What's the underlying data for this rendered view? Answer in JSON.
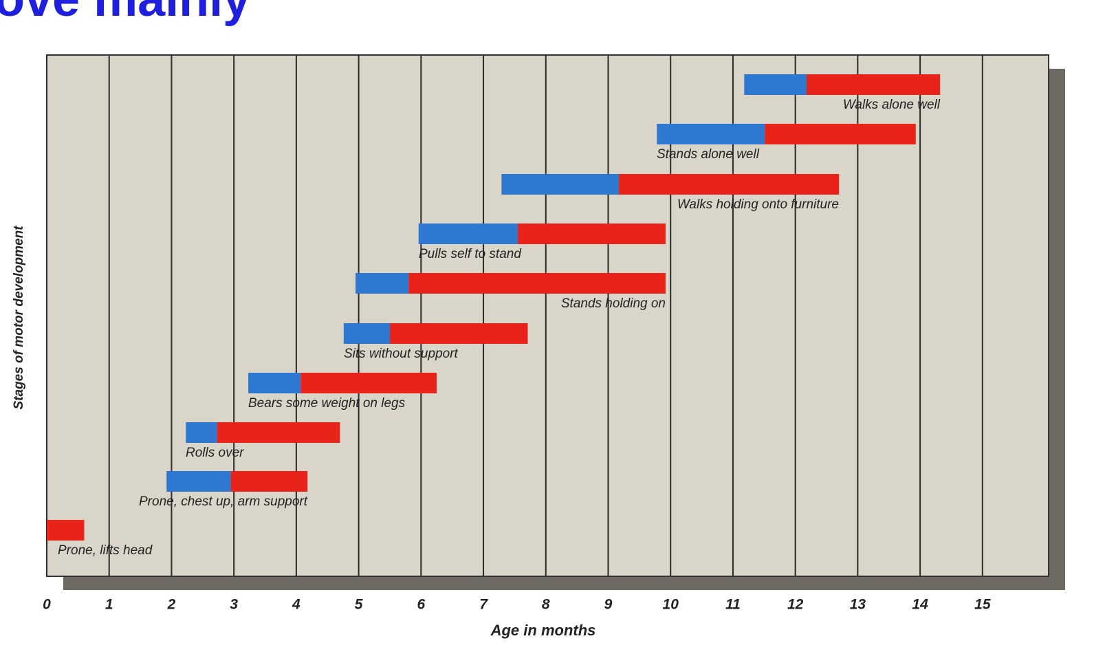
{
  "chart_data": {
    "type": "range-bar",
    "title": "ove mainly",
    "xlabel": "Age in months",
    "ylabel": "Stages of motor development",
    "categories": [
      "Walks alone well",
      "Stands alone well",
      "Walks holding onto furniture",
      "Pulls self to stand",
      "Stands holding on",
      "Sits without support",
      "Bears some weight on legs",
      "Rolls over",
      "Prone, chest up, arm support",
      "Prone, lifts head"
    ],
    "begin": [
      11.18,
      9.78,
      7.29,
      5.96,
      4.95,
      4.76,
      3.23,
      2.23,
      1.92,
      0
    ],
    "split": [
      12.18,
      11.51,
      9.17,
      7.55,
      5.8,
      5.5,
      4.07,
      2.73,
      2.95,
      null
    ],
    "end": [
      14.32,
      13.93,
      12.7,
      9.92,
      9.92,
      7.71,
      6.25,
      4.7,
      4.18,
      0.6
    ],
    "early_color": "#2f78d2",
    "late_color": "#e8231a",
    "xlim": [
      0,
      16.06
    ],
    "xticks": [
      0,
      1,
      2,
      3,
      4,
      5,
      6,
      7,
      8,
      9,
      10,
      11,
      12,
      13,
      14,
      15
    ],
    "grid": true
  }
}
